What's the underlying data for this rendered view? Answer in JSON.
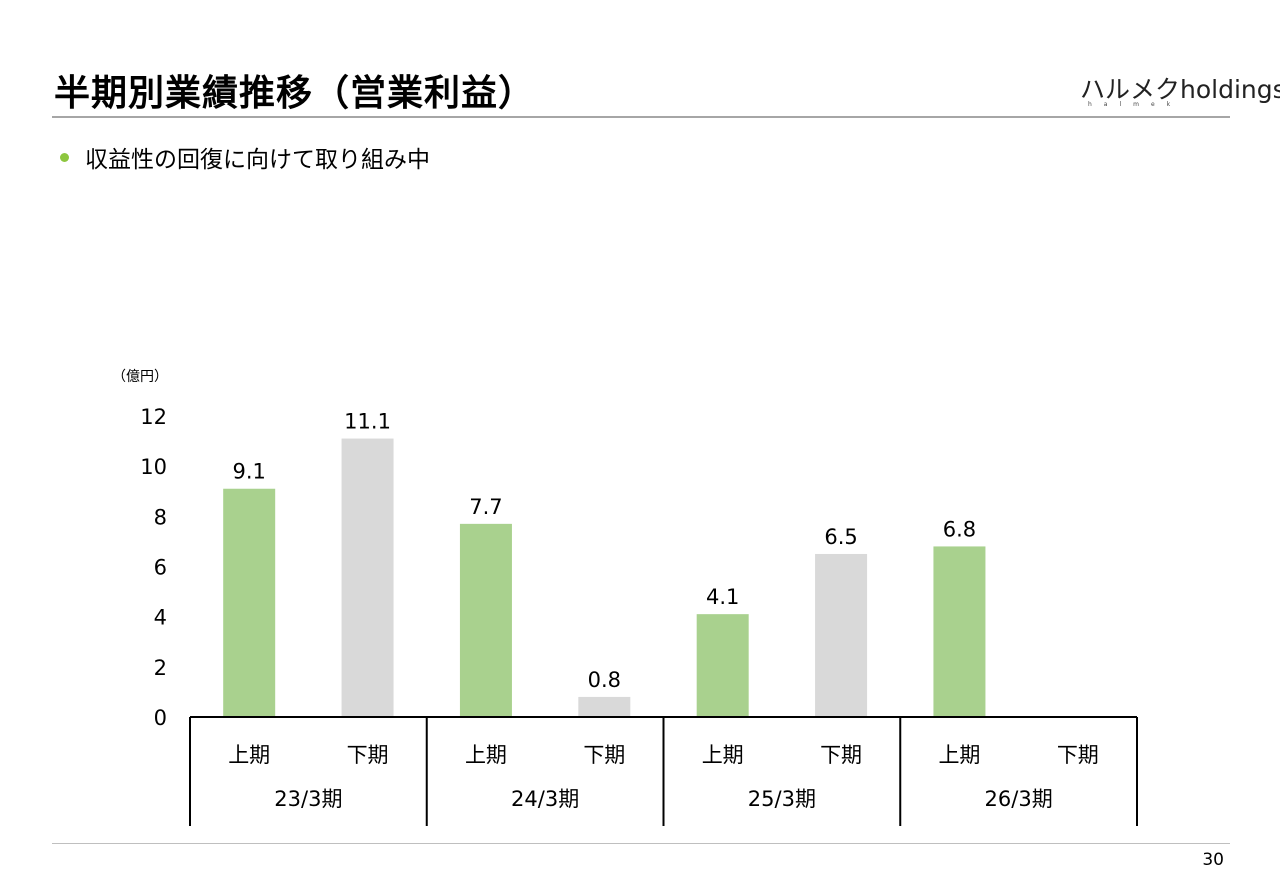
{
  "header": {
    "title": "半期別業績推移（営業利益）",
    "logo_text": "ハルメクholdings",
    "logo_subtext": "halmek"
  },
  "bullets": [
    "収益性の回復に向けて取り組み中"
  ],
  "footer": {
    "page_number": "30"
  },
  "colors": {
    "first_half": "#a9d18e",
    "second_half": "#d9d9d9",
    "bullet": "#8dc63f",
    "rule": "#a6a6a6"
  },
  "chart_data": {
    "type": "bar",
    "unit_label": "（億円）",
    "ylim": [
      0,
      12
    ],
    "yticks": [
      "0",
      "2",
      "4",
      "6",
      "8",
      "10",
      "12"
    ],
    "groups": [
      "23/3期",
      "24/3期",
      "25/3期",
      "26/3期"
    ],
    "categories": [
      "上期",
      "下期",
      "上期",
      "下期",
      "上期",
      "下期",
      "上期",
      "下期"
    ],
    "values": [
      9.1,
      11.1,
      7.7,
      0.8,
      4.1,
      6.5,
      6.8,
      null
    ],
    "labels": [
      "9.1",
      "11.1",
      "7.7",
      "0.8",
      "4.1",
      "6.5",
      "6.8",
      ""
    ],
    "grid": false,
    "legend": "none"
  }
}
